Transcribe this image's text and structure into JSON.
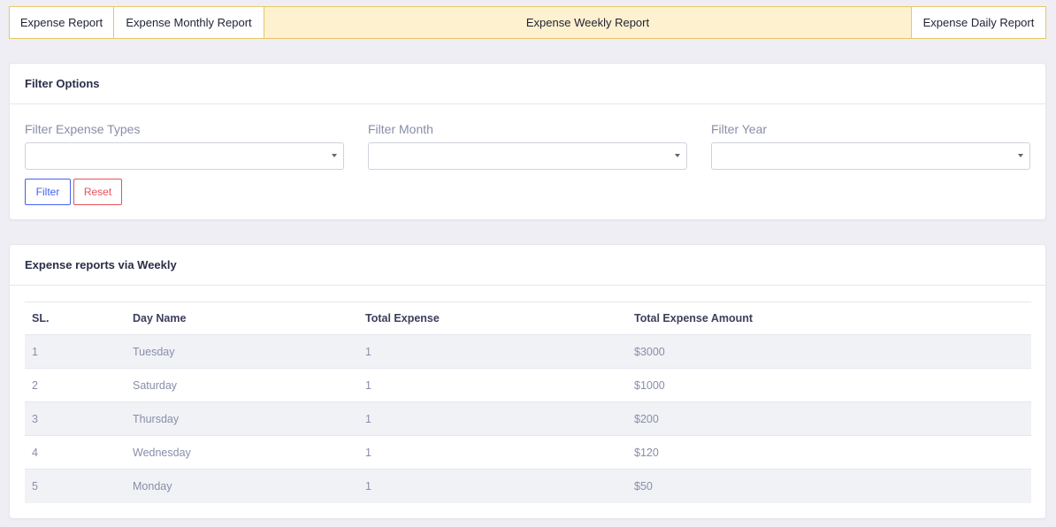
{
  "tabs": [
    {
      "label": "Expense Report"
    },
    {
      "label": "Expense Monthly Report"
    },
    {
      "label": "Expense Weekly Report",
      "active": true
    },
    {
      "label": "Expense Daily Report"
    }
  ],
  "filter_card": {
    "title": "Filter Options",
    "fields": [
      {
        "label": "Filter Expense Types",
        "value": ""
      },
      {
        "label": "Filter Month",
        "value": ""
      },
      {
        "label": "Filter Year",
        "value": ""
      }
    ],
    "filter_button": "Filter",
    "reset_button": "Reset"
  },
  "report_card": {
    "title": "Expense reports via Weekly",
    "columns": [
      "SL.",
      "Day Name",
      "Total Expense",
      "Total Expense Amount"
    ],
    "rows": [
      [
        "1",
        "Tuesday",
        "1",
        "$3000"
      ],
      [
        "2",
        "Saturday",
        "1",
        "$1000"
      ],
      [
        "3",
        "Thursday",
        "1",
        "$200"
      ],
      [
        "4",
        "Wednesday",
        "1",
        "$120"
      ],
      [
        "5",
        "Monday",
        "1",
        "$50"
      ]
    ]
  },
  "colors": {
    "tab_border": "#e8c766",
    "tab_active_bg": "#fdf1cf",
    "filter_button": "#4361ee",
    "reset_button": "#e7515a"
  }
}
